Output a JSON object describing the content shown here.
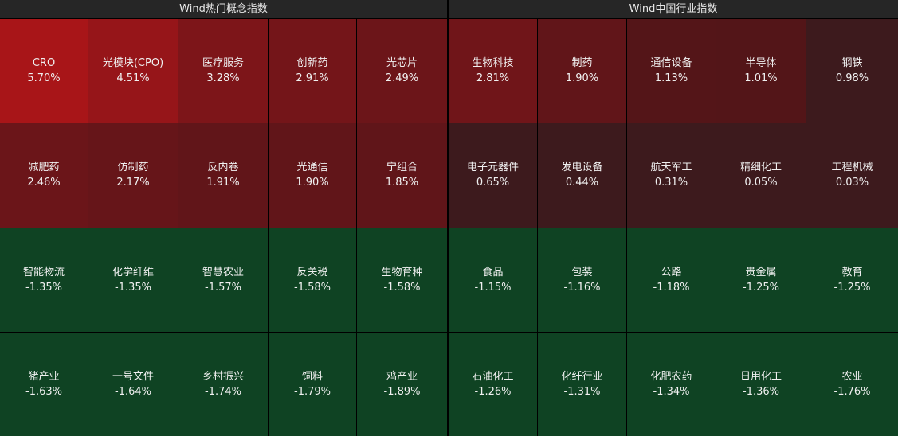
{
  "left_panel": {
    "title": "Wind热门概念指数",
    "tiles": [
      {
        "name": "CRO",
        "pct": "5.70%",
        "color": "#a81518"
      },
      {
        "name": "光模块(CPO)",
        "pct": "4.51%",
        "color": "#961519"
      },
      {
        "name": "医疗服务",
        "pct": "3.28%",
        "color": "#7d1519"
      },
      {
        "name": "创新药",
        "pct": "2.91%",
        "color": "#741519"
      },
      {
        "name": "光芯片",
        "pct": "2.49%",
        "color": "#6c1519"
      },
      {
        "name": "减肥药",
        "pct": "2.46%",
        "color": "#6b1519"
      },
      {
        "name": "仿制药",
        "pct": "2.17%",
        "color": "#661519"
      },
      {
        "name": "反内卷",
        "pct": "1.91%",
        "color": "#611519"
      },
      {
        "name": "光通信",
        "pct": "1.90%",
        "color": "#611519"
      },
      {
        "name": "宁组合",
        "pct": "1.85%",
        "color": "#601519"
      },
      {
        "name": "智能物流",
        "pct": "-1.35%",
        "color": "#0f4323"
      },
      {
        "name": "化学纤维",
        "pct": "-1.35%",
        "color": "#0f4323"
      },
      {
        "name": "智慧农业",
        "pct": "-1.57%",
        "color": "#0f4323"
      },
      {
        "name": "反关税",
        "pct": "-1.58%",
        "color": "#0f4323"
      },
      {
        "name": "生物育种",
        "pct": "-1.58%",
        "color": "#0f4323"
      },
      {
        "name": "猪产业",
        "pct": "-1.63%",
        "color": "#0f4323"
      },
      {
        "name": "一号文件",
        "pct": "-1.64%",
        "color": "#0f4323"
      },
      {
        "name": "乡村振兴",
        "pct": "-1.74%",
        "color": "#0f4323"
      },
      {
        "name": "饲料",
        "pct": "-1.79%",
        "color": "#0f4323"
      },
      {
        "name": "鸡产业",
        "pct": "-1.89%",
        "color": "#0f4323"
      }
    ]
  },
  "right_panel": {
    "title": "Wind中国行业指数",
    "tiles": [
      {
        "name": "生物科技",
        "pct": "2.81%",
        "color": "#701519"
      },
      {
        "name": "制药",
        "pct": "1.90%",
        "color": "#611519"
      },
      {
        "name": "通信设备",
        "pct": "1.13%",
        "color": "#541518"
      },
      {
        "name": "半导体",
        "pct": "1.01%",
        "color": "#531518"
      },
      {
        "name": "钢铁",
        "pct": "0.98%",
        "color": "#3d1a1d"
      },
      {
        "name": "电子元器件",
        "pct": "0.65%",
        "color": "#3d1a1d"
      },
      {
        "name": "发电设备",
        "pct": "0.44%",
        "color": "#3d1a1d"
      },
      {
        "name": "航天军工",
        "pct": "0.31%",
        "color": "#3d1a1d"
      },
      {
        "name": "精细化工",
        "pct": "0.05%",
        "color": "#3d1a1d"
      },
      {
        "name": "工程机械",
        "pct": "0.03%",
        "color": "#3d1a1d"
      },
      {
        "name": "食品",
        "pct": "-1.15%",
        "color": "#0f4323"
      },
      {
        "name": "包装",
        "pct": "-1.16%",
        "color": "#0f4323"
      },
      {
        "name": "公路",
        "pct": "-1.18%",
        "color": "#0f4323"
      },
      {
        "name": "贵金属",
        "pct": "-1.25%",
        "color": "#0f4323"
      },
      {
        "name": "教育",
        "pct": "-1.25%",
        "color": "#0f4323"
      },
      {
        "name": "石油化工",
        "pct": "-1.26%",
        "color": "#0f4323"
      },
      {
        "name": "化纤行业",
        "pct": "-1.31%",
        "color": "#0f4323"
      },
      {
        "name": "化肥农药",
        "pct": "-1.34%",
        "color": "#0f4323"
      },
      {
        "name": "日用化工",
        "pct": "-1.36%",
        "color": "#0f4323"
      },
      {
        "name": "农业",
        "pct": "-1.76%",
        "color": "#0f4323"
      }
    ]
  }
}
